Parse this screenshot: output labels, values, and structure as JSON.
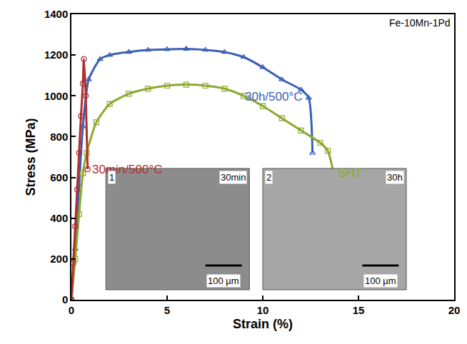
{
  "chart_data": {
    "type": "line",
    "annotation": "Fe-10Mn-1Pd",
    "x_label": "Strain (%)",
    "y_label": "Stress (MPa)",
    "xlim": [
      0,
      20
    ],
    "xticks": [
      0,
      5,
      10,
      15,
      20
    ],
    "ylim": [
      0,
      1400
    ],
    "yticks": [
      0,
      200,
      400,
      600,
      800,
      1000,
      1200,
      1400
    ],
    "grid": false,
    "series": [
      {
        "name": "30h/500°C",
        "color": "#3b5fb5",
        "marker": "triangle-up-open",
        "x": [
          0,
          0.2,
          0.4,
          0.6,
          0.9,
          1.5,
          2,
          3,
          4,
          5,
          6,
          7,
          8,
          9,
          10,
          11,
          12,
          12.4,
          12.6
        ],
        "values": [
          0,
          250,
          560,
          850,
          1080,
          1180,
          1200,
          1215,
          1225,
          1228,
          1230,
          1225,
          1215,
          1190,
          1140,
          1080,
          1030,
          990,
          720
        ]
      },
      {
        "name": "SHT",
        "color": "#8ca82e",
        "marker": "square-open",
        "x": [
          0,
          0.2,
          0.4,
          0.6,
          0.8,
          1.3,
          2,
          3,
          4,
          5,
          6,
          7,
          8,
          9,
          10,
          11,
          12,
          13,
          13.4,
          13.7
        ],
        "values": [
          0,
          200,
          420,
          620,
          720,
          870,
          960,
          1010,
          1035,
          1050,
          1055,
          1050,
          1035,
          1000,
          950,
          890,
          830,
          770,
          730,
          620
        ]
      },
      {
        "name": "30min/500°C",
        "color": "#b32d2d",
        "marker": "circle-open",
        "x": [
          0,
          0.1,
          0.2,
          0.3,
          0.4,
          0.5,
          0.6,
          0.65,
          0.75,
          0.85
        ],
        "values": [
          0,
          180,
          360,
          540,
          720,
          900,
          1060,
          1180,
          1000,
          640
        ]
      }
    ],
    "insets": [
      {
        "label": "1",
        "caption": "30min",
        "scale_bar": "100 µm"
      },
      {
        "label": "2",
        "caption": "30h",
        "scale_bar": "100 µm"
      }
    ]
  }
}
